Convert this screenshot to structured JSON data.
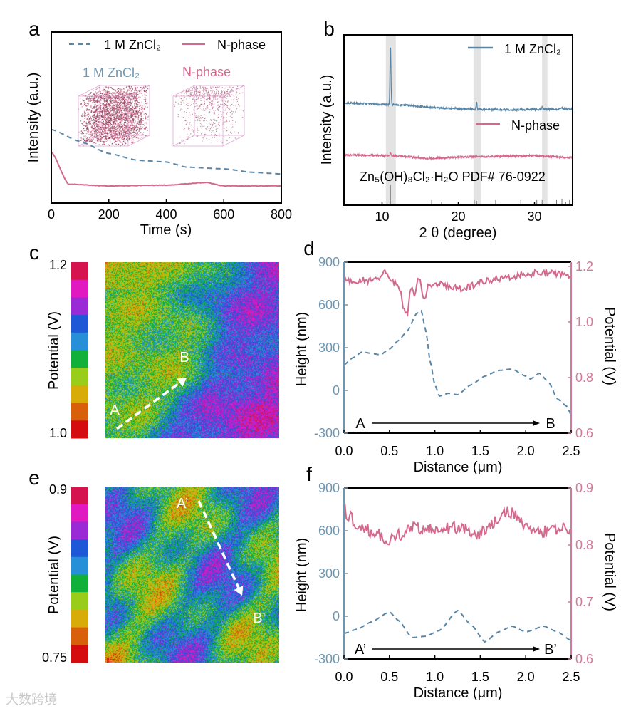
{
  "colors": {
    "blue": "#5a86a5",
    "pink": "#d3698e",
    "blue_axis": "#6f96b0",
    "pink_axis": "#d27a9b",
    "band": "#e3e3e3"
  },
  "colorbar_colors": [
    "#d4134f",
    "#e01ac0",
    "#9a2ad6",
    "#1f58d6",
    "#2590d8",
    "#10b03a",
    "#9acd1a",
    "#d8ac08",
    "#d8600a",
    "#d40c10"
  ],
  "watermark": "大数跨境",
  "chart_data": [
    {
      "panel": "a",
      "type": "line",
      "xlabel": "Time (s)",
      "ylabel": "Intensity (a.u.)",
      "xlim": [
        0,
        800
      ],
      "ylim": [
        0,
        1
      ],
      "xticks": [
        0,
        200,
        400,
        600,
        800
      ],
      "inset_labels": [
        "1 M ZnCl₂",
        "N-phase"
      ],
      "series": [
        {
          "name": "1 M ZnCl₂",
          "style": "dashed",
          "points": [
            [
              0,
              0.43
            ],
            [
              100,
              0.36
            ],
            [
              200,
              0.29
            ],
            [
              300,
              0.25
            ],
            [
              400,
              0.24
            ],
            [
              470,
              0.21
            ],
            [
              600,
              0.2
            ],
            [
              700,
              0.18
            ],
            [
              800,
              0.17
            ]
          ]
        },
        {
          "name": "N-phase",
          "style": "solid",
          "points": [
            [
              0,
              0.3
            ],
            [
              60,
              0.11
            ],
            [
              200,
              0.1
            ],
            [
              400,
              0.105
            ],
            [
              540,
              0.12
            ],
            [
              600,
              0.1
            ],
            [
              800,
              0.1
            ]
          ]
        }
      ]
    },
    {
      "panel": "b",
      "type": "line",
      "xlabel": "2 θ (degree)",
      "ylabel": "Intensity (a.u.)",
      "xlim": [
        5,
        35
      ],
      "ylim": [
        0,
        100
      ],
      "xticks": [
        10,
        20,
        30
      ],
      "highlight_bands": [
        [
          10.5,
          11.8
        ],
        [
          22.0,
          23.0
        ],
        [
          31.0,
          31.7
        ]
      ],
      "reference_label": "Zn₅(OH)₈Cl₂·H₂O PDF# 76-0922",
      "reference_sticks": [
        [
          11.1,
          12
        ],
        [
          16.5,
          3
        ],
        [
          17.8,
          2
        ],
        [
          22.1,
          3
        ],
        [
          22.4,
          2.5
        ],
        [
          24.9,
          3
        ],
        [
          28.2,
          3
        ],
        [
          30.3,
          3
        ],
        [
          31.0,
          3
        ],
        [
          32.9,
          3
        ],
        [
          33.6,
          3.5
        ],
        [
          34.1,
          2
        ],
        [
          34.6,
          3
        ]
      ],
      "series": [
        {
          "name": "1 M ZnCl₂",
          "baseline": [
            [
              5,
              60
            ],
            [
              12,
              59
            ],
            [
              18,
              57
            ],
            [
              25,
              56
            ],
            [
              35,
              56.5
            ]
          ],
          "peaks": [
            [
              11.1,
              35
            ],
            [
              22.4,
              4
            ],
            [
              24.9,
              1
            ],
            [
              31.0,
              1.2
            ],
            [
              33.6,
              1
            ]
          ]
        },
        {
          "name": "N-phase",
          "baseline": [
            [
              5,
              29.5
            ],
            [
              12,
              29
            ],
            [
              16,
              27.5
            ],
            [
              22,
              28.5
            ],
            [
              30,
              29
            ],
            [
              35,
              28
            ]
          ],
          "peaks": [
            [
              11.1,
              1.5
            ]
          ]
        }
      ]
    },
    {
      "panel": "c",
      "type": "heatmap",
      "colorbar_label": "Potential (V)",
      "colorbar_range": [
        1.0,
        1.2
      ],
      "colorbar_ticks": [
        "1.2",
        "1.0"
      ],
      "markers": [
        "A",
        "B"
      ]
    },
    {
      "panel": "d",
      "type": "line",
      "xlabel": "Distance (μm)",
      "ylabel_left": "Height (nm)",
      "ylabel_right": "Potential (V)",
      "xlim": [
        0,
        2.5
      ],
      "ylim_left": [
        -300,
        900
      ],
      "ylim_right": [
        0.6,
        1.215
      ],
      "xticks": [
        "0.0",
        "0.5",
        "1.0",
        "1.5",
        "2.0",
        "2.5"
      ],
      "yticks_left": [
        900,
        600,
        300,
        0,
        -300
      ],
      "yticks_right": [
        "1.2",
        "1.0",
        "0.8",
        "0.6"
      ],
      "arrow_labels": [
        "A",
        "B"
      ],
      "series": [
        {
          "name": "Height",
          "axis": "left",
          "style": "dashed",
          "points": [
            [
              0,
              180
            ],
            [
              0.1,
              230
            ],
            [
              0.2,
              270
            ],
            [
              0.3,
              260
            ],
            [
              0.4,
              250
            ],
            [
              0.5,
              290
            ],
            [
              0.6,
              350
            ],
            [
              0.7,
              420
            ],
            [
              0.8,
              540
            ],
            [
              0.85,
              560
            ],
            [
              0.9,
              420
            ],
            [
              0.95,
              200
            ],
            [
              1.0,
              40
            ],
            [
              1.05,
              -40
            ],
            [
              1.15,
              -20
            ],
            [
              1.25,
              -30
            ],
            [
              1.4,
              40
            ],
            [
              1.55,
              100
            ],
            [
              1.7,
              140
            ],
            [
              1.85,
              150
            ],
            [
              2.0,
              100
            ],
            [
              2.05,
              80
            ],
            [
              2.15,
              120
            ],
            [
              2.25,
              60
            ],
            [
              2.35,
              -60
            ],
            [
              2.45,
              -110
            ],
            [
              2.5,
              -170
            ]
          ]
        },
        {
          "name": "Potential",
          "axis": "right",
          "style": "solid",
          "noise": 0.012,
          "points": [
            [
              0,
              1.15
            ],
            [
              0.4,
              1.15
            ],
            [
              0.43,
              1.18
            ],
            [
              0.55,
              1.14
            ],
            [
              0.62,
              1.12
            ],
            [
              0.65,
              1.05
            ],
            [
              0.7,
              1.03
            ],
            [
              0.73,
              1.12
            ],
            [
              0.78,
              1.1
            ],
            [
              0.82,
              1.17
            ],
            [
              0.88,
              1.07
            ],
            [
              0.92,
              1.13
            ],
            [
              1.0,
              1.14
            ],
            [
              1.3,
              1.12
            ],
            [
              1.6,
              1.15
            ],
            [
              2.0,
              1.17
            ],
            [
              2.15,
              1.18
            ],
            [
              2.5,
              1.17
            ]
          ]
        }
      ]
    },
    {
      "panel": "e",
      "type": "heatmap",
      "colorbar_label": "Potential (V)",
      "colorbar_range": [
        0.75,
        0.9
      ],
      "colorbar_ticks": [
        "0.9",
        "0.75"
      ],
      "markers": [
        "A’",
        "B’"
      ]
    },
    {
      "panel": "f",
      "type": "line",
      "xlabel": "Distance (μm)",
      "ylabel_left": "Height (nm)",
      "ylabel_right": "Potential (V)",
      "xlim": [
        0,
        2.5
      ],
      "ylim_left": [
        -300,
        900
      ],
      "ylim_right": [
        0.6,
        0.9
      ],
      "xticks": [
        "0.0",
        "0.5",
        "1.0",
        "1.5",
        "2.0",
        "2.5"
      ],
      "yticks_left": [
        900,
        600,
        300,
        0,
        -300
      ],
      "yticks_right": [
        "0.9",
        "0.8",
        "0.7",
        "0.6"
      ],
      "arrow_labels": [
        "A’",
        "B’"
      ],
      "series": [
        {
          "name": "Height",
          "axis": "left",
          "style": "dashed",
          "points": [
            [
              0,
              -120
            ],
            [
              0.15,
              -90
            ],
            [
              0.3,
              -40
            ],
            [
              0.5,
              30
            ],
            [
              0.6,
              -30
            ],
            [
              0.75,
              -150
            ],
            [
              0.9,
              -140
            ],
            [
              1.05,
              -100
            ],
            [
              1.25,
              40
            ],
            [
              1.4,
              -60
            ],
            [
              1.55,
              -180
            ],
            [
              1.7,
              -110
            ],
            [
              1.85,
              -70
            ],
            [
              2.0,
              -110
            ],
            [
              2.2,
              -70
            ],
            [
              2.35,
              -110
            ],
            [
              2.5,
              -170
            ]
          ]
        },
        {
          "name": "Potential",
          "axis": "right",
          "style": "solid",
          "noise": 0.012,
          "points": [
            [
              0,
              0.86
            ],
            [
              0.2,
              0.83
            ],
            [
              0.5,
              0.81
            ],
            [
              0.8,
              0.83
            ],
            [
              1.2,
              0.83
            ],
            [
              1.5,
              0.82
            ],
            [
              1.8,
              0.86
            ],
            [
              2.1,
              0.82
            ],
            [
              2.5,
              0.83
            ]
          ]
        }
      ]
    }
  ]
}
